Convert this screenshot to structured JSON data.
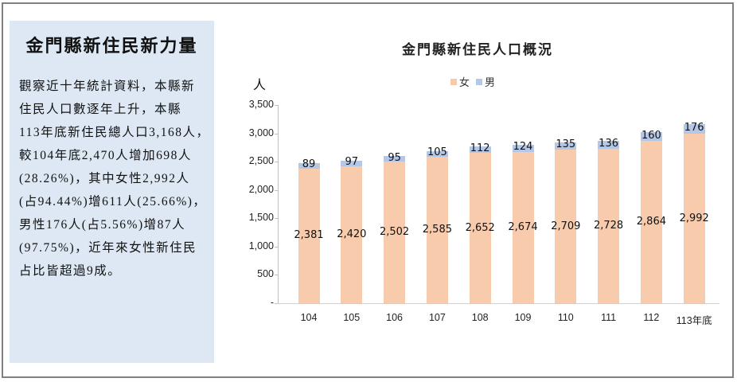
{
  "sidebar": {
    "title": "金門縣新住民新力量",
    "lines": [
      "觀察近十年統計資料，本縣新",
      "住民人口數逐年上升，本縣",
      "113年底新住民總人口3,168人，",
      "較104年底2,470人增加698人",
      "(28.26%)，其中女性2,992人",
      "(占94.44%)增611人(25.66%)，",
      "男性176人(占5.56%)增87人",
      "(97.75%)，近年來女性新住民",
      "占比皆超過9成。"
    ],
    "background_color": "#dde8f4"
  },
  "chart": {
    "title": "金門縣新住民人口概況",
    "y_unit": "人",
    "legend": [
      {
        "label": "女",
        "color": "#f7cbab"
      },
      {
        "label": "男",
        "color": "#b4c7e7"
      }
    ],
    "y_ticks": [
      "3,500",
      "3,000",
      "2,500",
      "2,000",
      "1,500",
      "1,000",
      "500",
      "-"
    ],
    "x_ticks": [
      "104",
      "105",
      "106",
      "107",
      "108",
      "109",
      "110",
      "111",
      "112",
      "113年底"
    ],
    "female_labels": [
      "2,381",
      "2,420",
      "2,502",
      "2,585",
      "2,652",
      "2,674",
      "2,709",
      "2,728",
      "2,864",
      "2,992"
    ],
    "male_labels": [
      "89",
      "97",
      "95",
      "105",
      "112",
      "124",
      "135",
      "136",
      "160",
      "176"
    ]
  },
  "chart_data": {
    "type": "bar",
    "stacked": true,
    "title": "金門縣新住民人口概況",
    "xlabel": "",
    "ylabel": "人",
    "categories": [
      "104",
      "105",
      "106",
      "107",
      "108",
      "109",
      "110",
      "111",
      "112",
      "113年底"
    ],
    "series": [
      {
        "name": "女",
        "color": "#f7cbab",
        "values": [
          2381,
          2420,
          2502,
          2585,
          2652,
          2674,
          2709,
          2728,
          2864,
          2992
        ]
      },
      {
        "name": "男",
        "color": "#b4c7e7",
        "values": [
          89,
          97,
          95,
          105,
          112,
          124,
          135,
          136,
          160,
          176
        ]
      }
    ],
    "ylim": [
      0,
      3500
    ],
    "yticks": [
      0,
      500,
      1000,
      1500,
      2000,
      2500,
      3000,
      3500
    ],
    "grid": false,
    "legend_position": "top",
    "data_labels": true
  }
}
